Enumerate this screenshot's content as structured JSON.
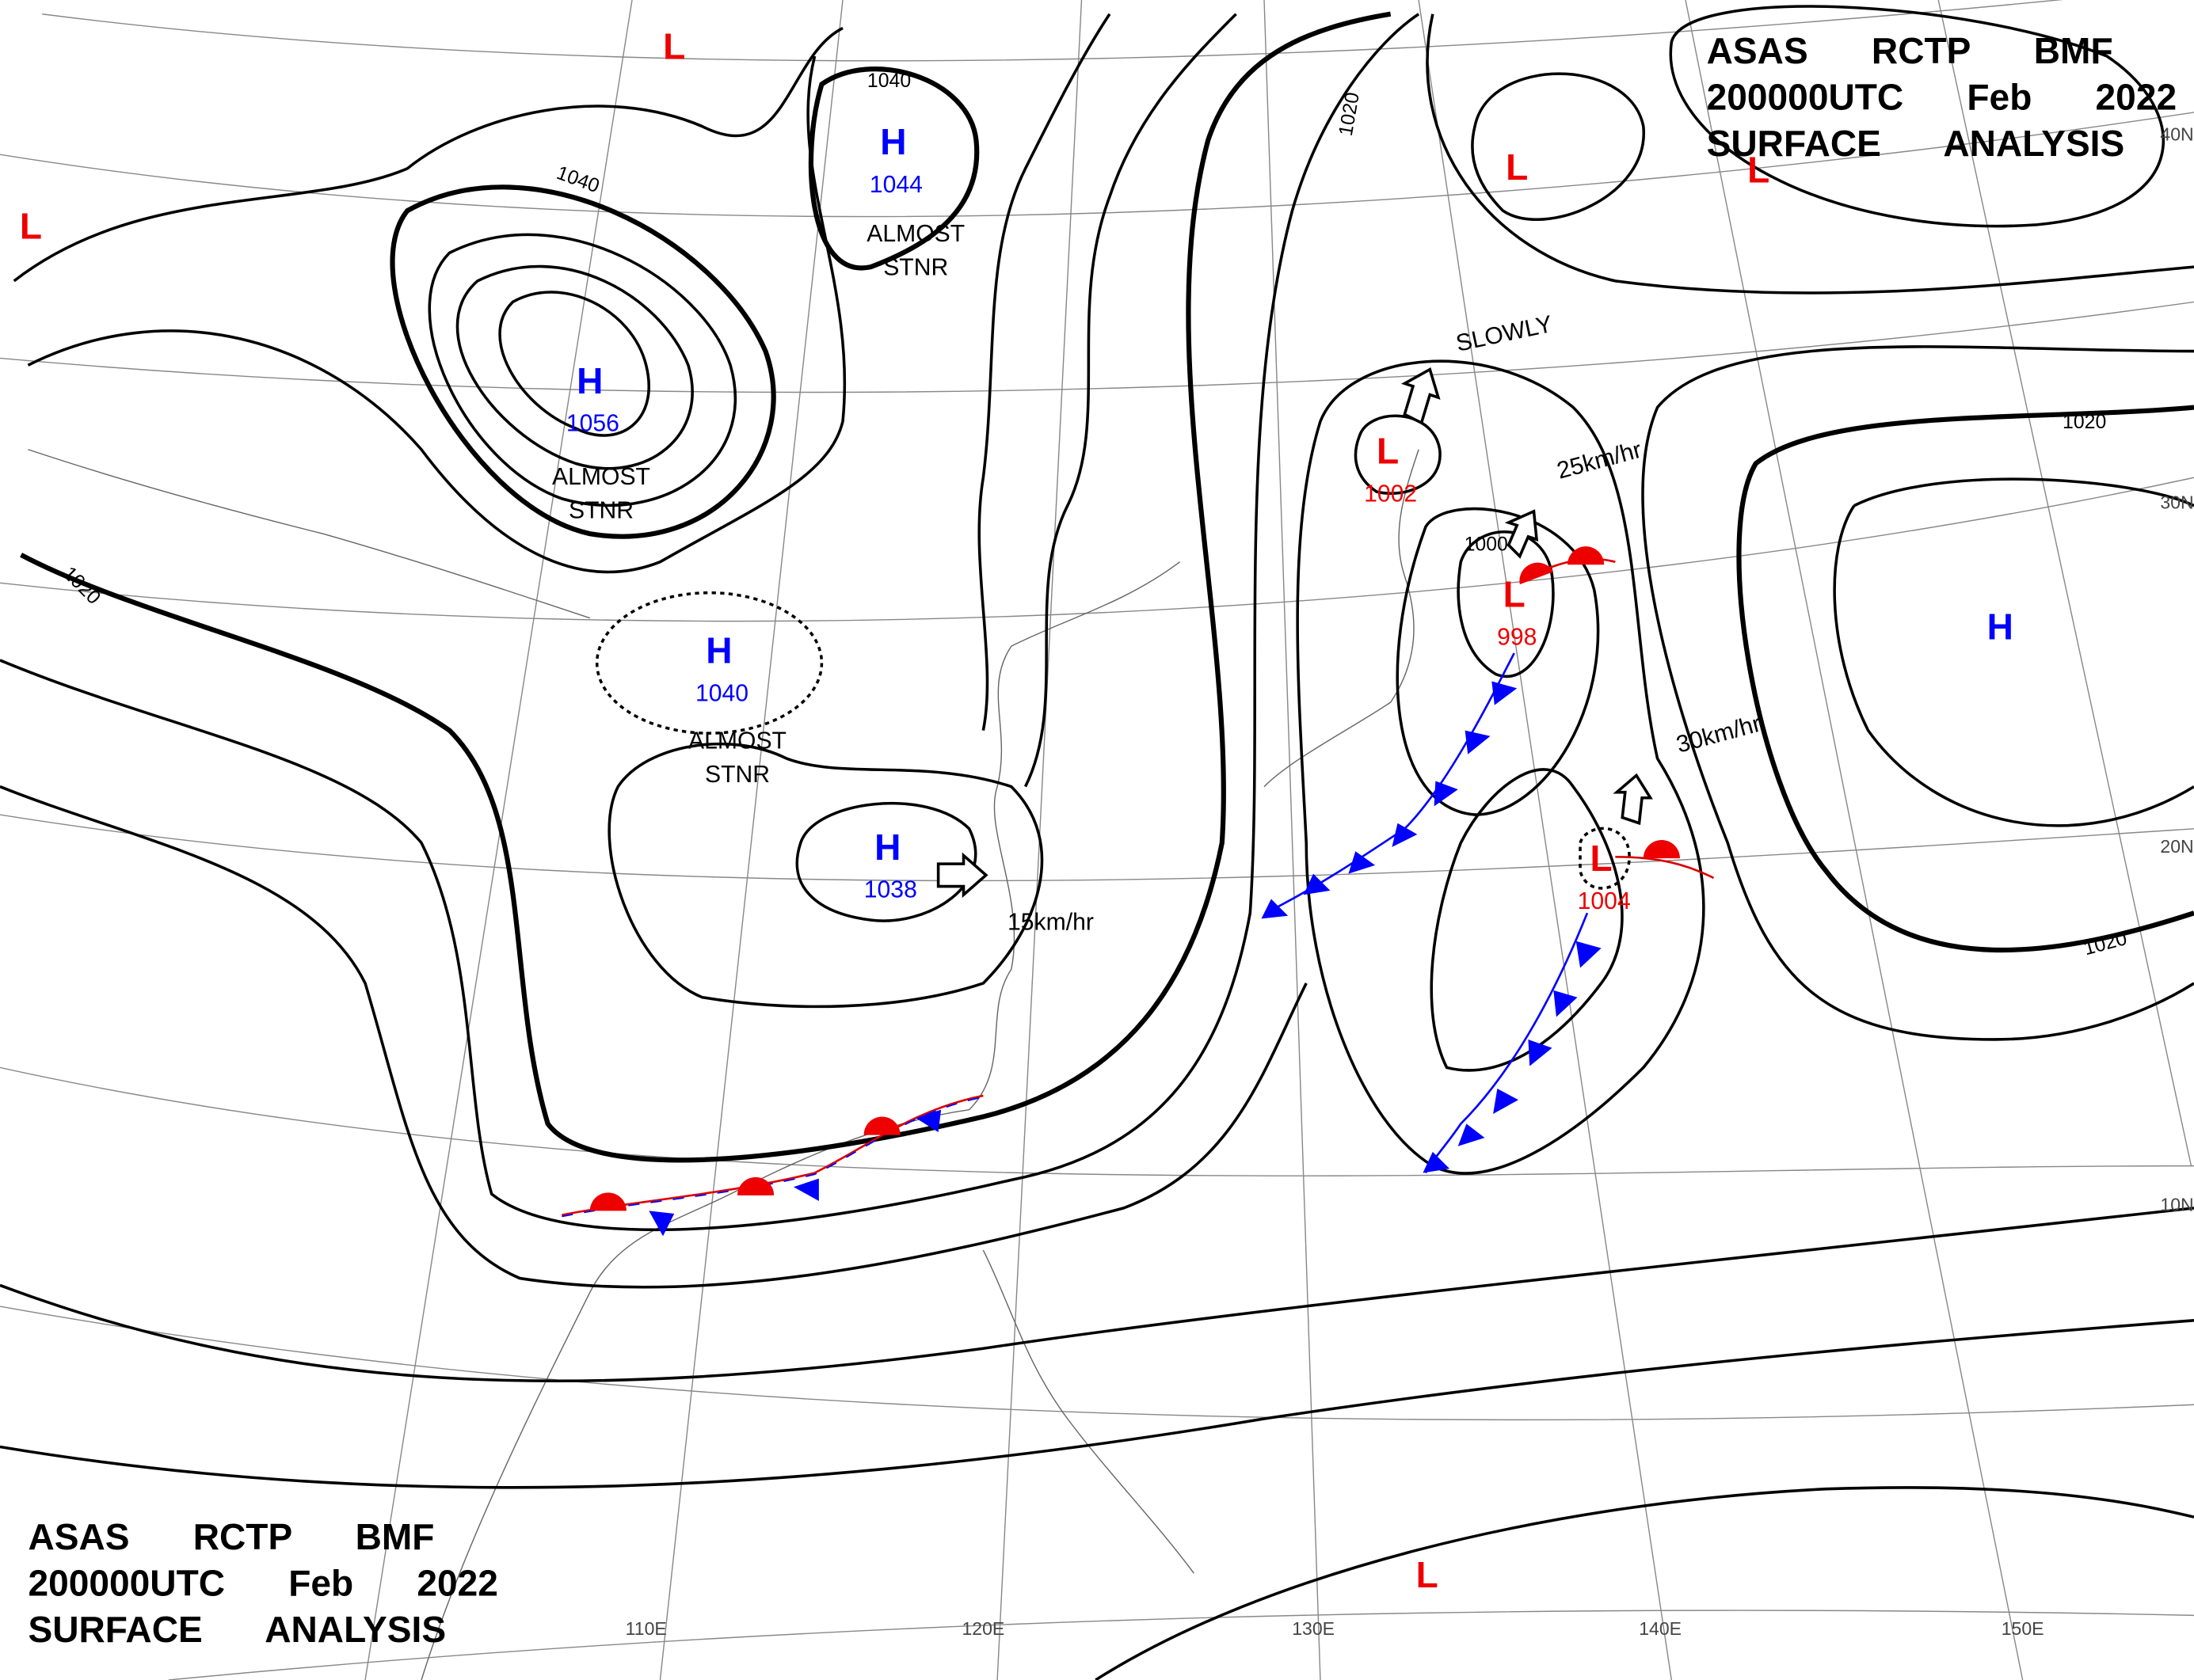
{
  "header_top": {
    "lines": [
      "ASAS RCTP BMF",
      "200000UTC Feb 2022",
      "SURFACE ANALYSIS"
    ]
  },
  "header_bottom": {
    "lines": [
      "ASAS RCTP BMF",
      "200000UTC Feb 2022",
      "SURFACE ANALYSIS"
    ]
  },
  "pressure_systems": [
    {
      "symbol": "H",
      "value": 1044
    },
    {
      "symbol": "H",
      "value": 1056
    },
    {
      "symbol": "H",
      "value": 1040
    },
    {
      "symbol": "H",
      "value": 1038
    },
    {
      "symbol": "H"
    },
    {
      "symbol": "L",
      "value": 1002
    },
    {
      "symbol": "L",
      "value": 998
    },
    {
      "symbol": "L",
      "value": 1004
    },
    {
      "symbol": "L"
    },
    {
      "symbol": "L"
    },
    {
      "symbol": "L"
    },
    {
      "symbol": "L"
    },
    {
      "symbol": "L"
    }
  ],
  "isobar_labels": [
    1040,
    1040,
    1020,
    1020,
    1020,
    1020,
    1000
  ],
  "motion_labels": [
    {
      "lines": [
        "ALMOST",
        "STNR"
      ]
    },
    {
      "lines": [
        "ALMOST",
        "STNR"
      ]
    },
    {
      "lines": [
        "ALMOST",
        "STNR"
      ]
    },
    {
      "lines": [
        "SLOWLY"
      ]
    },
    {
      "lines": [
        "25km/hr"
      ]
    },
    {
      "lines": [
        "30km/hr"
      ]
    },
    {
      "lines": [
        "15km/hr"
      ]
    }
  ],
  "longitudes": [
    "110E",
    "120E",
    "130E",
    "140E",
    "150E"
  ],
  "latitudes": [
    "40N",
    "30N",
    "20N",
    "10N"
  ]
}
